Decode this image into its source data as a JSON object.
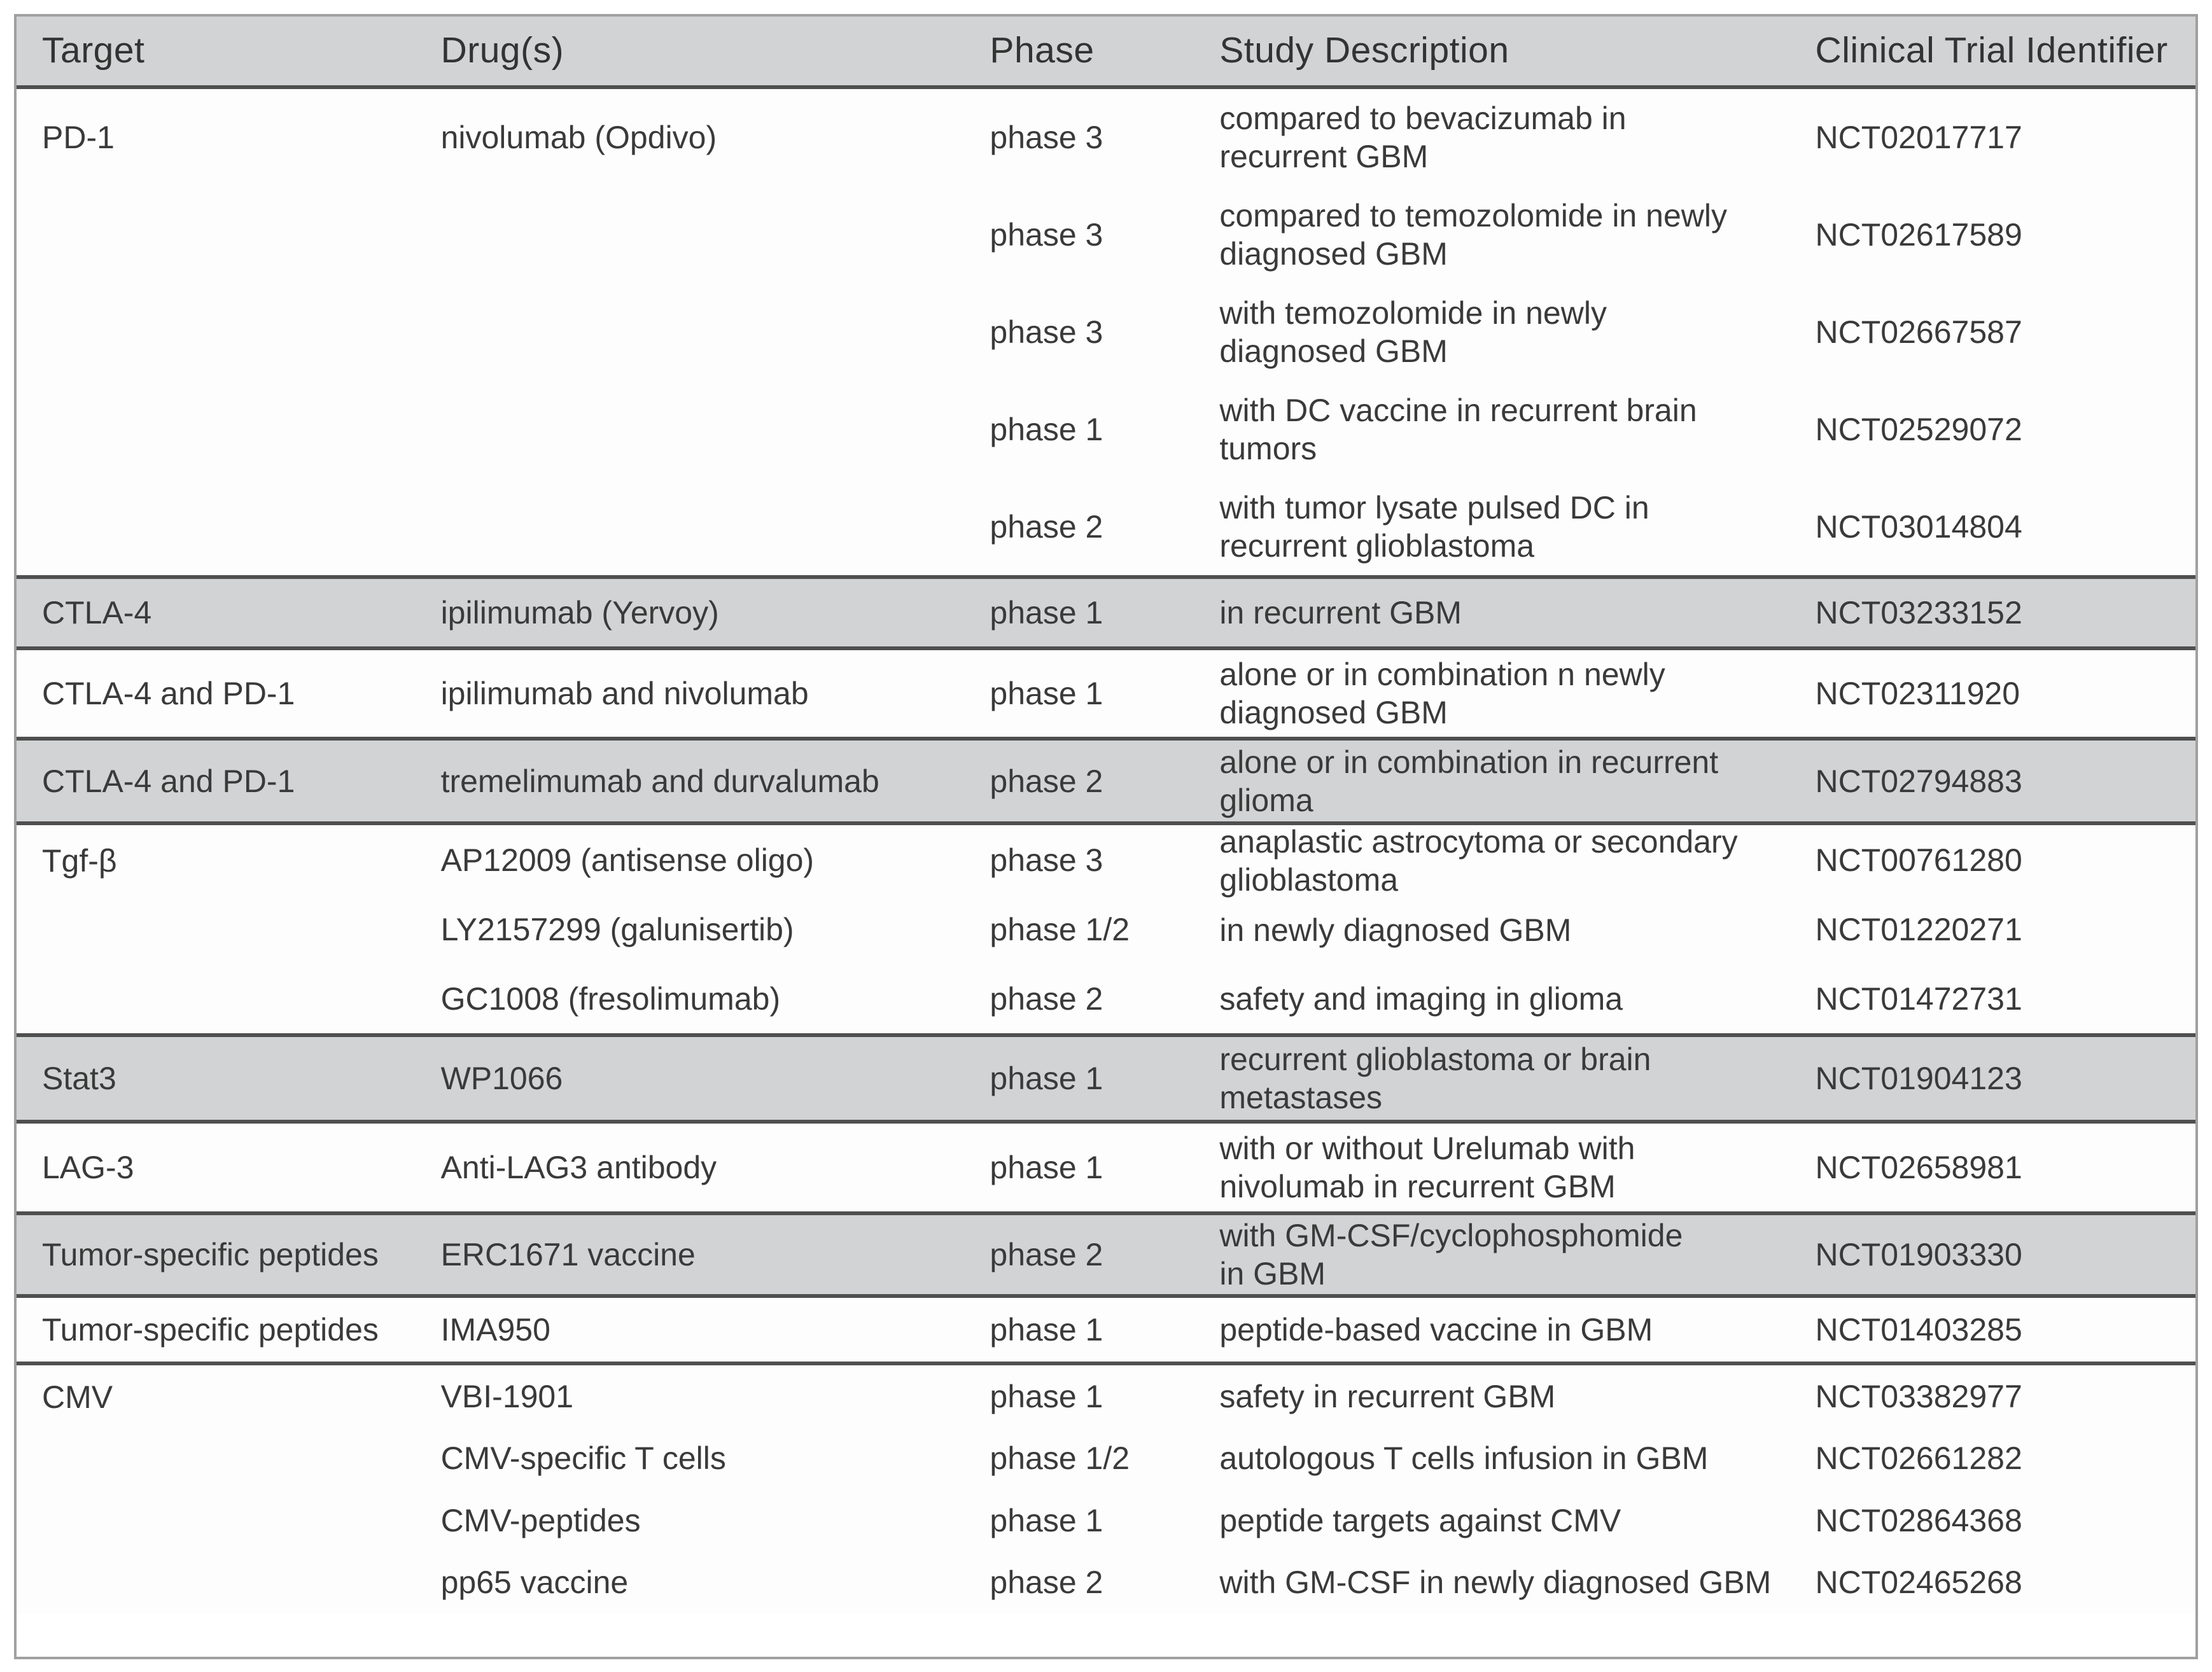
{
  "table": {
    "columns": [
      "Target",
      "Drug(s)",
      "Phase",
      "Study Description",
      "Clinical Trial Identifier"
    ],
    "colors": {
      "shaded_row": "#d2d3d4",
      "white_row": "#fdfdfd",
      "heavy_rule": "#4f4f4f",
      "outer_border": "#a0a0a0",
      "text": "#3a3a3a"
    },
    "groups": [
      {
        "target": "PD-1",
        "shaded": false,
        "entries": [
          {
            "drug": "nivolumab (Opdivo)",
            "phase": "phase 3",
            "description": "compared to bevacizumab in\nrecurrent GBM",
            "nct": "NCT02017717"
          },
          {
            "drug": "",
            "phase": "phase 3",
            "description": "compared to temozolomide in newly\ndiagnosed GBM",
            "nct": "NCT02617589"
          },
          {
            "drug": "",
            "phase": "phase 3",
            "description": "with temozolomide in newly\ndiagnosed GBM",
            "nct": "NCT02667587"
          },
          {
            "drug": "",
            "phase": "phase 1",
            "description": "with DC vaccine in recurrent brain\ntumors",
            "nct": "NCT02529072"
          },
          {
            "drug": "",
            "phase": "phase 2",
            "description": "with tumor lysate pulsed DC in\nrecurrent glioblastoma",
            "nct": "NCT03014804"
          }
        ]
      },
      {
        "target": "CTLA-4",
        "shaded": true,
        "entries": [
          {
            "drug": "ipilimumab (Yervoy)",
            "phase": "phase 1",
            "description": "in recurrent GBM",
            "nct": "NCT03233152"
          }
        ]
      },
      {
        "target": "CTLA-4 and PD-1",
        "shaded": false,
        "entries": [
          {
            "drug": "ipilimumab and nivolumab",
            "phase": "phase 1",
            "description": "alone or in combination n newly\ndiagnosed GBM",
            "nct": "NCT02311920"
          }
        ]
      },
      {
        "target": "CTLA-4 and PD-1",
        "shaded": true,
        "entries": [
          {
            "drug": "tremelimumab and durvalumab",
            "phase": "phase 2",
            "description": "alone or in combination in recurrent\nglioma",
            "nct": "NCT02794883"
          }
        ]
      },
      {
        "target": "Tgf-β",
        "shaded": false,
        "entries": [
          {
            "drug": "AP12009 (antisense oligo)",
            "phase": "phase 3",
            "description": "anaplastic astrocytoma or secondary\nglioblastoma",
            "nct": "NCT00761280"
          },
          {
            "drug": "LY2157299 (galunisertib)",
            "phase": "phase 1/2",
            "description": "in newly diagnosed GBM",
            "nct": "NCT01220271"
          },
          {
            "drug": "GC1008 (fresolimumab)",
            "phase": "phase 2",
            "description": "safety and imaging in glioma",
            "nct": "NCT01472731"
          }
        ]
      },
      {
        "target": "Stat3",
        "shaded": true,
        "entries": [
          {
            "drug": "WP1066",
            "phase": "phase 1",
            "description": "recurrent glioblastoma or brain\nmetastases",
            "nct": "NCT01904123"
          }
        ]
      },
      {
        "target": "LAG-3",
        "shaded": false,
        "entries": [
          {
            "drug": "Anti-LAG3 antibody",
            "phase": "phase 1",
            "description": "with or without Urelumab with\nnivolumab in recurrent GBM",
            "nct": "NCT02658981"
          }
        ]
      },
      {
        "target": "Tumor-specific peptides",
        "shaded": true,
        "entries": [
          {
            "drug": "ERC1671 vaccine",
            "phase": "phase 2",
            "description": "with GM-CSF/cyclophosphomide\nin GBM",
            "nct": "NCT01903330"
          }
        ]
      },
      {
        "target": "Tumor-specific peptides",
        "shaded": false,
        "entries": [
          {
            "drug": "IMA950",
            "phase": "phase 1",
            "description": "peptide-based vaccine in GBM",
            "nct": "NCT01403285"
          }
        ]
      },
      {
        "target": "CMV",
        "shaded": false,
        "entries": [
          {
            "drug": "VBI-1901",
            "phase": "phase 1",
            "description": "safety in recurrent GBM",
            "nct": "NCT03382977"
          },
          {
            "drug": "CMV-specific T cells",
            "phase": "phase 1/2",
            "description": "autologous T cells infusion in GBM",
            "nct": "NCT02661282"
          },
          {
            "drug": "CMV-peptides",
            "phase": "phase 1",
            "description": "peptide targets against CMV",
            "nct": "NCT02864368"
          },
          {
            "drug": "pp65 vaccine",
            "phase": "phase 2",
            "description": "with GM-CSF in newly diagnosed GBM",
            "nct": "NCT02465268"
          }
        ]
      }
    ]
  }
}
